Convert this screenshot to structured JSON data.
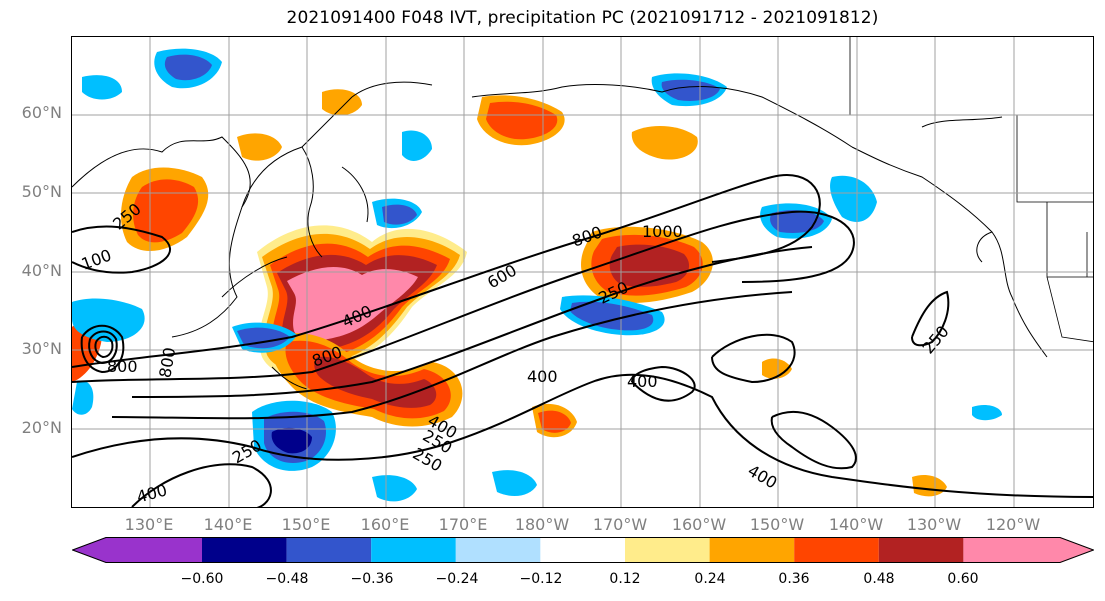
{
  "title": "2021091400 F048 IVT, precipitation PC (2021091712 - 2021091812)",
  "lat_labels": [
    "60°N",
    "50°N",
    "40°N",
    "30°N",
    "20°N"
  ],
  "lon_labels": [
    "130°E",
    "140°E",
    "150°E",
    "160°E",
    "170°E",
    "180°W",
    "170°W",
    "160°W",
    "150°W",
    "140°W",
    "130°W",
    "120°W"
  ],
  "contour_labels": [
    "1000",
    "800",
    "600",
    "400",
    "250",
    "250",
    "400",
    "800",
    "800",
    "400",
    "400",
    "250",
    "250",
    "400",
    "400",
    "250",
    "100",
    "250",
    "800"
  ],
  "colorbar": {
    "colors": [
      "#9933cc",
      "#00008b",
      "#3355cc",
      "#00bfff",
      "#b0e0ff",
      "#ffffff",
      "#ffec8b",
      "#ffa500",
      "#ff4500",
      "#b22222",
      "#ff88aa"
    ],
    "labels": [
      "−0.60",
      "−0.48",
      "−0.36",
      "−0.24",
      "−0.12",
      "0.12",
      "0.24",
      "0.36",
      "0.48",
      "0.60"
    ]
  }
}
